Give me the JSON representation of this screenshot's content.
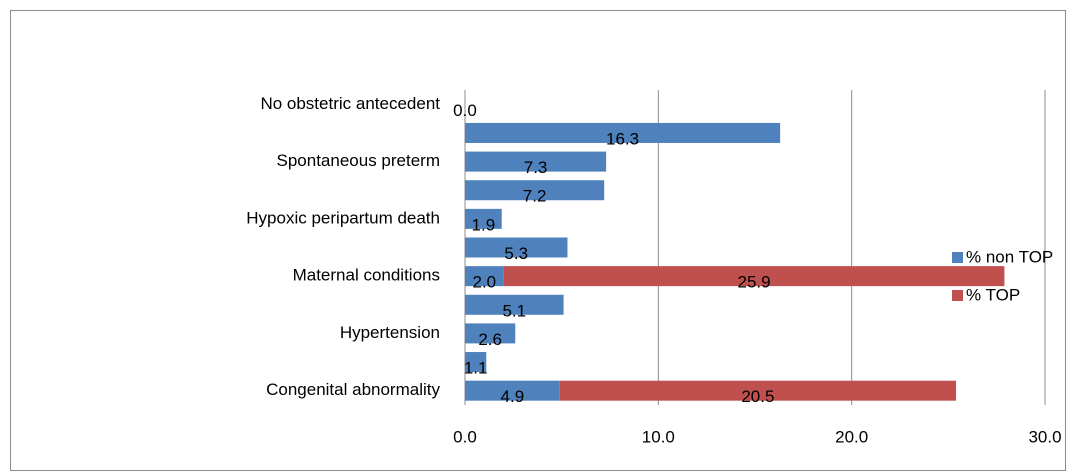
{
  "chart_data": {
    "type": "bar",
    "orientation": "horizontal",
    "stacked": true,
    "categories": [
      "No obstetric antecedent",
      null,
      "Spontaneous preterm",
      null,
      "Hypoxic peripartum death",
      null,
      "Maternal conditions",
      null,
      "Hypertension",
      null,
      "Congenital abnormality"
    ],
    "series": [
      {
        "name": "% non TOP",
        "color": "#4f81bd",
        "values": [
          0.0,
          16.3,
          7.3,
          7.2,
          1.9,
          5.3,
          2.0,
          5.1,
          2.6,
          1.1,
          4.9
        ],
        "value_labels": [
          "0.0",
          "16.3",
          "7.3",
          "7.2",
          "1.9",
          "5.3",
          "2.0",
          "5.1",
          "2.6",
          "1.1",
          "4.9"
        ]
      },
      {
        "name": "% TOP",
        "color": "#c0504d",
        "values": [
          null,
          null,
          null,
          null,
          null,
          null,
          25.9,
          null,
          null,
          null,
          20.5
        ],
        "value_labels": [
          null,
          null,
          null,
          null,
          null,
          null,
          "25.9",
          null,
          null,
          null,
          "20.5"
        ]
      }
    ],
    "xlim": [
      0,
      30
    ],
    "xticks": [
      {
        "value": 0,
        "label": "0.0"
      },
      {
        "value": 10,
        "label": "10.0"
      },
      {
        "value": 20,
        "label": "20.0"
      },
      {
        "value": 30,
        "label": "30.0"
      }
    ],
    "grid": true,
    "legend": "right"
  }
}
